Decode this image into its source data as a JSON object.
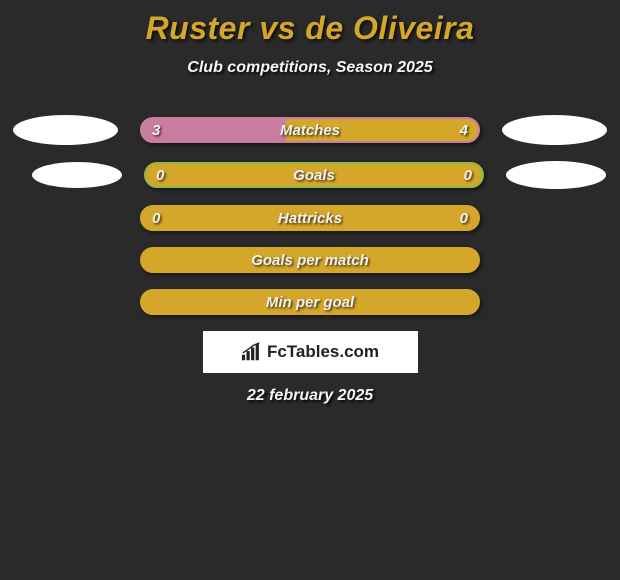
{
  "colors": {
    "background": "#2a2a2a",
    "accent": "#d4a62a",
    "fill_pink": "#c97d9f",
    "border_pink": "#c97d9f",
    "border_green": "#8fb846",
    "border_gold": "#d4a62a",
    "text_light": "#f5f5f5"
  },
  "title": "Ruster vs de Oliveira",
  "subtitle": "Club competitions, Season 2025",
  "rows": [
    {
      "label": "Matches",
      "left_val": "3",
      "right_val": "4",
      "left_pct": 42.8,
      "border_color": "#c97d9f",
      "bg_color": "#d4a62a",
      "fill_color": "#c97d9f",
      "show_left_ellipse": true,
      "show_right_ellipse": true,
      "ellipse_class_l": "ellipse-left-1",
      "ellipse_class_r": "ellipse-right-1"
    },
    {
      "label": "Goals",
      "left_val": "0",
      "right_val": "0",
      "left_pct": 0,
      "border_color": "#8fb846",
      "bg_color": "#d4a62a",
      "fill_color": "#8fb846",
      "show_left_ellipse": true,
      "show_right_ellipse": true,
      "ellipse_class_l": "ellipse-left-2",
      "ellipse_class_r": "ellipse-right-2"
    },
    {
      "label": "Hattricks",
      "left_val": "0",
      "right_val": "0",
      "left_pct": 0,
      "border_color": "#d4a62a",
      "bg_color": "#d4a62a",
      "fill_color": "#d4a62a",
      "show_left_ellipse": false,
      "show_right_ellipse": false
    },
    {
      "label": "Goals per match",
      "left_val": "",
      "right_val": "",
      "left_pct": 0,
      "border_color": "#d4a62a",
      "bg_color": "#d4a62a",
      "fill_color": "#d4a62a",
      "show_left_ellipse": false,
      "show_right_ellipse": false
    },
    {
      "label": "Min per goal",
      "left_val": "",
      "right_val": "",
      "left_pct": 0,
      "border_color": "#d4a62a",
      "bg_color": "#d4a62a",
      "fill_color": "#d4a62a",
      "show_left_ellipse": false,
      "show_right_ellipse": false
    }
  ],
  "logo_text": "FcTables.com",
  "date": "22 february 2025"
}
